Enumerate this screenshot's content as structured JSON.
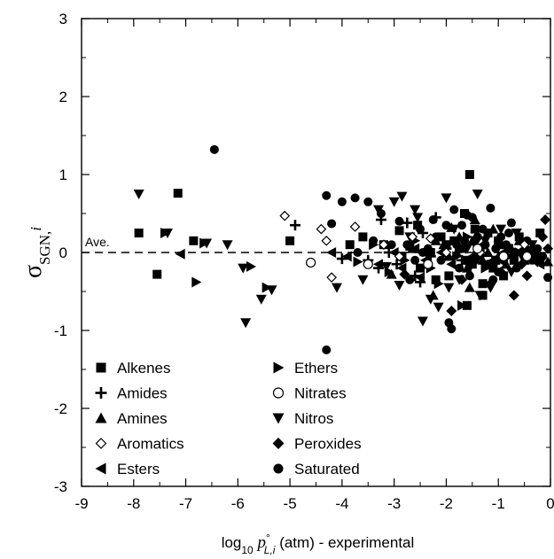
{
  "chart_data": {
    "type": "scatter",
    "xlabel": {
      "prefix": "log",
      "sub": "10",
      "p": "p",
      "sup": "°",
      "psub": "L,i",
      "suffix": " (atm) - experimental"
    },
    "ylabel": {
      "sigma": "σ",
      "sub": "SGN,",
      "sub_italic": "i"
    },
    "xlim": [
      -9,
      0
    ],
    "ylim": [
      -3,
      3
    ],
    "xticks": [
      -9,
      -8,
      -7,
      -6,
      -5,
      -4,
      -3,
      -2,
      -1,
      0
    ],
    "xtick_labels": [
      "-9",
      "-8",
      "-7",
      "-6",
      "-5",
      "-4",
      "-3",
      "-2",
      "-1",
      "0"
    ],
    "yticks": [
      -3,
      -2,
      -1,
      0,
      1,
      2,
      3
    ],
    "ytick_labels": [
      "-3",
      "-2",
      "-1",
      "0",
      "1",
      "2",
      "3"
    ],
    "reference_line": {
      "y": 0,
      "label": "Ave.",
      "style": "dashed"
    },
    "grid": false,
    "legend_placement": "bottom-left",
    "series": [
      {
        "name": "Alkenes",
        "marker": "square",
        "points": [
          [
            -7.9,
            0.25
          ],
          [
            -7.15,
            0.76
          ],
          [
            -7.55,
            -0.28
          ],
          [
            -6.85,
            0.15
          ],
          [
            -5.0,
            0.15
          ],
          [
            -3.85,
            0.1
          ],
          [
            -3.6,
            0.2
          ],
          [
            -3.2,
            0.1
          ],
          [
            -2.9,
            0.28
          ],
          [
            -2.7,
            0.08
          ],
          [
            -2.55,
            0.35
          ],
          [
            -2.5,
            -0.2
          ],
          [
            -2.3,
            0.0
          ],
          [
            -2.1,
            0.2
          ],
          [
            -1.95,
            -0.3
          ],
          [
            -1.85,
            0.15
          ],
          [
            -1.75,
            0.05
          ],
          [
            -1.6,
            -0.1
          ],
          [
            -1.55,
            1.0
          ],
          [
            -1.5,
            -0.15
          ],
          [
            -1.45,
            0.3
          ],
          [
            -1.35,
            0.05
          ],
          [
            -1.3,
            -0.4
          ],
          [
            -1.2,
            0.25
          ],
          [
            -1.1,
            -0.2
          ],
          [
            -1.0,
            0.15
          ],
          [
            -0.9,
            -0.3
          ],
          [
            -0.8,
            0.05
          ],
          [
            -0.7,
            -0.1
          ],
          [
            -0.6,
            0.2
          ],
          [
            -0.3,
            -0.05
          ],
          [
            -0.2,
            0.25
          ],
          [
            -1.6,
            -0.68
          ],
          [
            -1.65,
            0.5
          ],
          [
            -2.0,
            0.1
          ],
          [
            -1.3,
            -0.55
          ],
          [
            -2.85,
            -0.05
          ],
          [
            -2.2,
            -0.35
          ],
          [
            -1.05,
            -0.1
          ]
        ]
      },
      {
        "name": "Amides",
        "marker": "plus",
        "points": [
          [
            -4.9,
            0.35
          ],
          [
            -3.25,
            0.42
          ],
          [
            -2.75,
            0.38
          ],
          [
            -2.45,
            0.25
          ],
          [
            -2.2,
            0.45
          ],
          [
            -3.5,
            -0.1
          ],
          [
            -3.1,
            0.0
          ],
          [
            -2.95,
            -0.15
          ],
          [
            -2.6,
            -0.3
          ],
          [
            -3.3,
            -0.2
          ],
          [
            -2.3,
            -0.05
          ],
          [
            -1.7,
            -0.1
          ],
          [
            -2.0,
            0.05
          ],
          [
            -4.0,
            -0.08
          ],
          [
            -2.5,
            -0.38
          ]
        ]
      },
      {
        "name": "Amines",
        "marker": "triangle-up",
        "points": [
          [
            -3.05,
            -0.28
          ],
          [
            -2.65,
            0.05
          ],
          [
            -2.35,
            -0.15
          ],
          [
            -2.2,
            0.15
          ],
          [
            -2.05,
            0.1
          ],
          [
            -1.95,
            -0.05
          ],
          [
            -1.8,
            0.0
          ],
          [
            -1.75,
            0.2
          ],
          [
            -1.6,
            -0.2
          ],
          [
            -1.5,
            0.15
          ],
          [
            -1.45,
            0.42
          ],
          [
            -1.4,
            0.05
          ],
          [
            -1.3,
            -0.1
          ],
          [
            -1.2,
            0.0
          ],
          [
            -1.1,
            0.3
          ],
          [
            -1.0,
            -0.05
          ],
          [
            -0.95,
            0.1
          ],
          [
            -0.85,
            -0.15
          ],
          [
            -0.75,
            0.05
          ],
          [
            -0.6,
            0.15
          ],
          [
            -0.5,
            -0.1
          ],
          [
            -0.4,
            0.0
          ],
          [
            -0.05,
            -0.12
          ],
          [
            -1.55,
            -0.45
          ],
          [
            -2.25,
            -0.55
          ],
          [
            -1.9,
            0.32
          ]
        ]
      },
      {
        "name": "Aromatics",
        "marker": "diamond-open",
        "points": [
          [
            -5.1,
            0.47
          ],
          [
            -4.4,
            0.3
          ],
          [
            -4.3,
            0.15
          ],
          [
            -4.2,
            -0.32
          ],
          [
            -3.75,
            0.33
          ],
          [
            -3.2,
            0.1
          ],
          [
            -2.65,
            0.2
          ],
          [
            -2.3,
            0.18
          ],
          [
            -2.0,
            0.0
          ],
          [
            -0.5,
            0.1
          ],
          [
            -1.35,
            0.0
          ],
          [
            -2.9,
            -0.05
          ]
        ]
      },
      {
        "name": "Esters",
        "marker": "triangle-left",
        "points": [
          [
            -7.1,
            -0.02
          ],
          [
            -4.2,
            0.0
          ],
          [
            -3.9,
            -0.05
          ],
          [
            -3.3,
            -0.15
          ],
          [
            -3.0,
            0.0
          ],
          [
            -2.85,
            -0.2
          ],
          [
            -2.6,
            0.05
          ],
          [
            -2.4,
            -0.1
          ],
          [
            -2.1,
            0.0
          ],
          [
            -1.9,
            -0.15
          ],
          [
            -1.7,
            0.05
          ],
          [
            -1.5,
            -0.05
          ],
          [
            -1.3,
            0.1
          ],
          [
            -1.1,
            -0.1
          ],
          [
            -0.9,
            0.0
          ],
          [
            -0.7,
            -0.05
          ],
          [
            -0.5,
            0.05
          ],
          [
            -0.2,
            -0.15
          ],
          [
            -2.5,
            -0.32
          ]
        ]
      },
      {
        "name": "Ethers",
        "marker": "triangle-right",
        "points": [
          [
            -7.4,
            0.25
          ],
          [
            -6.65,
            0.12
          ],
          [
            -6.8,
            -0.38
          ],
          [
            -5.75,
            -0.18
          ],
          [
            -5.45,
            -0.45
          ],
          [
            -3.7,
            -0.12
          ],
          [
            -3.4,
            0.1
          ],
          [
            -3.1,
            -0.25
          ],
          [
            -2.8,
            -0.1
          ],
          [
            -2.6,
            0.15
          ],
          [
            -2.3,
            -0.2
          ],
          [
            -2.0,
            0.1
          ],
          [
            -1.8,
            -0.05
          ],
          [
            -1.6,
            0.2
          ],
          [
            -1.4,
            0.0
          ],
          [
            -1.25,
            -0.2
          ],
          [
            -1.0,
            0.1
          ],
          [
            -0.8,
            -0.05
          ],
          [
            -0.6,
            0.0
          ],
          [
            -1.7,
            -0.68
          ],
          [
            -2.15,
            -0.4
          ]
        ]
      },
      {
        "name": "Nitrates",
        "marker": "circle-open",
        "points": [
          [
            -4.6,
            -0.13
          ],
          [
            -3.5,
            -0.15
          ],
          [
            -1.4,
            0.05
          ],
          [
            -0.9,
            -0.05
          ],
          [
            -0.45,
            -0.05
          ],
          [
            -2.35,
            -0.15
          ]
        ]
      },
      {
        "name": "Nitros",
        "marker": "triangle-down",
        "points": [
          [
            -7.9,
            0.75
          ],
          [
            -7.35,
            0.25
          ],
          [
            -6.6,
            0.12
          ],
          [
            -6.2,
            0.1
          ],
          [
            -5.9,
            -0.2
          ],
          [
            -5.85,
            -0.9
          ],
          [
            -5.55,
            -0.6
          ],
          [
            -5.35,
            -0.48
          ],
          [
            -4.1,
            -0.45
          ],
          [
            -3.3,
            0.55
          ],
          [
            -3.0,
            0.65
          ],
          [
            -2.85,
            0.72
          ],
          [
            -2.7,
            0.2
          ],
          [
            -2.55,
            0.45
          ],
          [
            -2.0,
            0.7
          ],
          [
            -1.4,
            0.75
          ],
          [
            -2.45,
            -0.88
          ],
          [
            -2.15,
            -0.7
          ],
          [
            -1.95,
            -0.45
          ],
          [
            -1.75,
            -0.35
          ],
          [
            -1.55,
            -0.2
          ],
          [
            -1.35,
            -0.55
          ],
          [
            -1.15,
            -0.45
          ],
          [
            -0.95,
            0.3
          ],
          [
            -0.75,
            -0.25
          ],
          [
            -0.55,
            -0.05
          ],
          [
            -3.6,
            -0.35
          ],
          [
            -2.9,
            -0.42
          ],
          [
            -2.6,
            0.55
          ],
          [
            -1.85,
            0.3
          ],
          [
            -1.45,
            0.1
          ],
          [
            -1.05,
            -0.1
          ],
          [
            -0.65,
            0.25
          ],
          [
            -1.25,
            0.15
          ],
          [
            -2.3,
            -0.6
          ],
          [
            -3.15,
            -0.18
          ],
          [
            -1.6,
            0.05
          ],
          [
            -0.35,
            0.1
          ]
        ]
      },
      {
        "name": "Peroxides",
        "marker": "diamond",
        "points": [
          [
            -1.9,
            -0.75
          ],
          [
            -1.15,
            -0.4
          ],
          [
            -0.95,
            -0.25
          ],
          [
            -0.7,
            -0.55
          ],
          [
            -0.55,
            -0.15
          ],
          [
            -0.35,
            0.05
          ],
          [
            -0.1,
            0.42
          ],
          [
            -0.05,
            0.05
          ],
          [
            -0.25,
            -0.12
          ],
          [
            -1.7,
            -0.35
          ],
          [
            -2.8,
            -0.28
          ],
          [
            -0.45,
            -0.3
          ],
          [
            -0.15,
            0.2
          ]
        ]
      },
      {
        "name": "Saturated",
        "marker": "circle",
        "points": [
          [
            -6.45,
            1.32
          ],
          [
            -4.3,
            0.73
          ],
          [
            -4.3,
            -1.25
          ],
          [
            -4.2,
            0.37
          ],
          [
            -4.0,
            0.65
          ],
          [
            -3.75,
            0.7
          ],
          [
            -3.5,
            0.65
          ],
          [
            -3.25,
            0.5
          ],
          [
            -3.05,
            0.1
          ],
          [
            -2.9,
            0.4
          ],
          [
            -2.75,
            0.1
          ],
          [
            -2.6,
            -0.1
          ],
          [
            -2.5,
            0.3
          ],
          [
            -2.35,
            0.05
          ],
          [
            -2.2,
            0.2
          ],
          [
            -2.1,
            -0.1
          ],
          [
            -2.0,
            0.35
          ],
          [
            -1.95,
            -0.9
          ],
          [
            -1.9,
            -0.98
          ],
          [
            -1.85,
            0.55
          ],
          [
            -1.8,
            0.1
          ],
          [
            -1.75,
            -0.2
          ],
          [
            -1.7,
            0.35
          ],
          [
            -1.65,
            0.15
          ],
          [
            -1.55,
            -0.3
          ],
          [
            -1.5,
            0.45
          ],
          [
            -1.45,
            -0.1
          ],
          [
            -1.4,
            0.2
          ],
          [
            -1.35,
            -0.05
          ],
          [
            -1.25,
            0.1
          ],
          [
            -1.2,
            -0.15
          ],
          [
            -1.15,
            0.57
          ],
          [
            -1.05,
            0.05
          ],
          [
            -1.0,
            -0.25
          ],
          [
            -0.95,
            0.2
          ],
          [
            -0.9,
            -0.1
          ],
          [
            -0.85,
            0.1
          ],
          [
            -0.8,
            0.25
          ],
          [
            -0.7,
            0.0
          ],
          [
            -0.65,
            -0.2
          ],
          [
            -0.55,
            0.0
          ],
          [
            -0.45,
            0.15
          ],
          [
            -0.35,
            -0.1
          ],
          [
            -0.25,
            0.05
          ],
          [
            -0.15,
            -0.05
          ],
          [
            -0.05,
            -0.32
          ],
          [
            -2.45,
            0.0
          ],
          [
            -2.7,
            -0.35
          ],
          [
            -3.4,
            0.15
          ],
          [
            -3.7,
            0.0
          ],
          [
            -2.25,
            0.42
          ],
          [
            -1.6,
            0.48
          ],
          [
            -1.3,
            0.3
          ],
          [
            -0.75,
            0.38
          ],
          [
            -1.1,
            -0.35
          ]
        ]
      }
    ]
  }
}
